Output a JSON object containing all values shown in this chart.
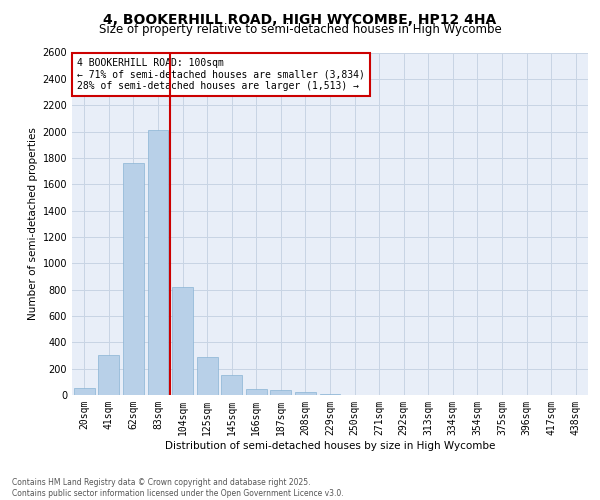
{
  "title": "4, BOOKERHILL ROAD, HIGH WYCOMBE, HP12 4HA",
  "subtitle": "Size of property relative to semi-detached houses in High Wycombe",
  "xlabel": "Distribution of semi-detached houses by size in High Wycombe",
  "ylabel": "Number of semi-detached properties",
  "categories": [
    "20sqm",
    "41sqm",
    "62sqm",
    "83sqm",
    "104sqm",
    "125sqm",
    "145sqm",
    "166sqm",
    "187sqm",
    "208sqm",
    "229sqm",
    "250sqm",
    "271sqm",
    "292sqm",
    "313sqm",
    "334sqm",
    "354sqm",
    "375sqm",
    "396sqm",
    "417sqm",
    "438sqm"
  ],
  "values": [
    50,
    300,
    1760,
    2010,
    820,
    290,
    155,
    45,
    40,
    25,
    5,
    0,
    0,
    0,
    0,
    0,
    0,
    0,
    0,
    0,
    0
  ],
  "bar_color": "#b8d0e8",
  "bar_edge_color": "#8ab4d4",
  "vline_color": "#cc0000",
  "annotation_text": "4 BOOKERHILL ROAD: 100sqm\n← 71% of semi-detached houses are smaller (3,834)\n28% of semi-detached houses are larger (1,513) →",
  "annotation_box_color": "#cc0000",
  "ylim": [
    0,
    2600
  ],
  "yticks": [
    0,
    200,
    400,
    600,
    800,
    1000,
    1200,
    1400,
    1600,
    1800,
    2000,
    2200,
    2400,
    2600
  ],
  "grid_color": "#c8d4e4",
  "background_color": "#e8eef8",
  "footer_text": "Contains HM Land Registry data © Crown copyright and database right 2025.\nContains public sector information licensed under the Open Government Licence v3.0.",
  "title_fontsize": 10,
  "subtitle_fontsize": 8.5,
  "axis_label_fontsize": 7.5,
  "tick_fontsize": 7,
  "annotation_fontsize": 7,
  "footer_fontsize": 5.5
}
